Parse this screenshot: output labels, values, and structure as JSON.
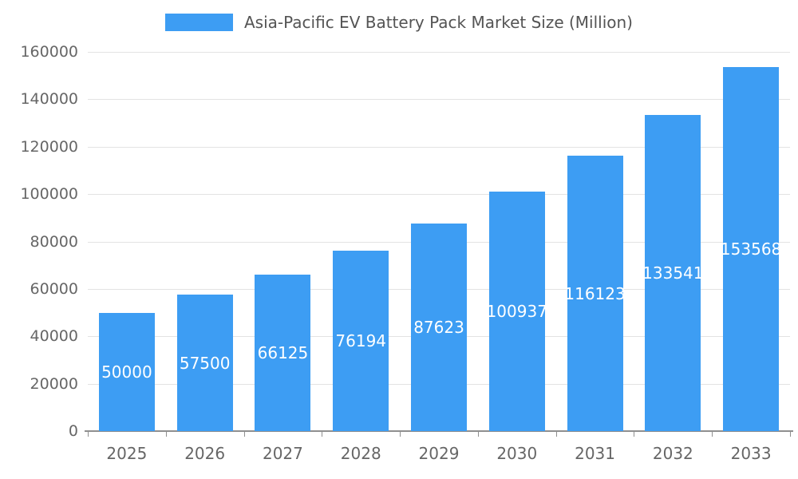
{
  "legend": {
    "swatch_color": "#3d9df3",
    "label": "Asia-Pacific EV Battery Pack Market Size (Million)"
  },
  "chart_data": {
    "type": "bar",
    "title": "Asia-Pacific EV Battery Pack Market Size (Million)",
    "categories": [
      "2025",
      "2026",
      "2027",
      "2028",
      "2029",
      "2030",
      "2031",
      "2032",
      "2033"
    ],
    "values": [
      50000,
      57500,
      66125,
      76194,
      87623,
      100937,
      116123,
      133541,
      153568
    ],
    "xlabel": "",
    "ylabel": "",
    "ylim": [
      0,
      160000
    ],
    "y_tick_step": 20000,
    "y_tick_labels": [
      "0",
      "20000",
      "40000",
      "60000",
      "80000",
      "100000",
      "120000",
      "140000",
      "160000"
    ],
    "grid": true,
    "legend_position": "top",
    "bar_labels_inside": true,
    "colors": {
      "bar": "#3d9df3",
      "bar_label": "#ffffff",
      "axis_text": "#666666",
      "gridline": "#e3e3e3",
      "axis_line": "#8f8f8f",
      "legend_text": "#545454"
    }
  }
}
